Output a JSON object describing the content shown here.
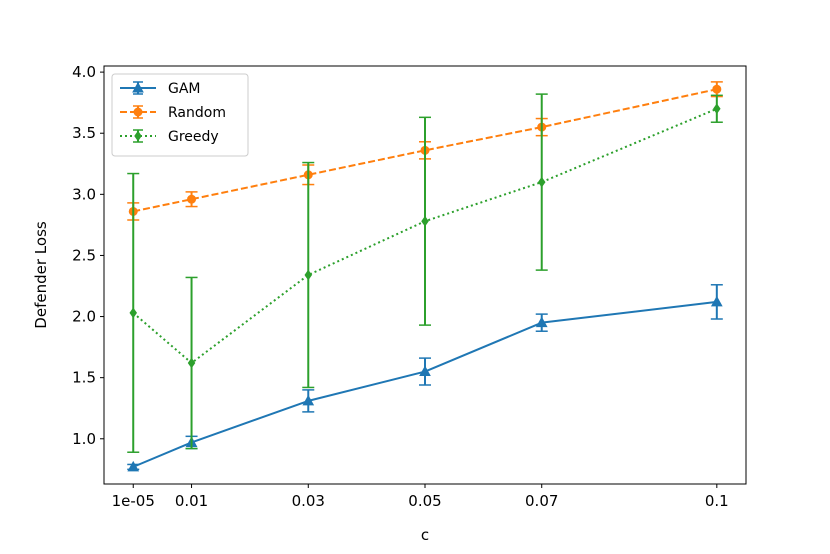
{
  "chart_data": {
    "type": "line",
    "title": "",
    "xlabel": "c",
    "ylabel": "Defender Loss",
    "x": [
      1e-05,
      0.01,
      0.03,
      0.05,
      0.07,
      0.1
    ],
    "x_tick_labels": [
      "1e-05",
      "0.01",
      "0.03",
      "0.05",
      "0.07",
      "0.1"
    ],
    "xlim": [
      -0.005,
      0.105
    ],
    "ylim": [
      0.63,
      4.05
    ],
    "y_ticks": [
      1.0,
      1.5,
      2.0,
      2.5,
      3.0,
      3.5,
      4.0
    ],
    "y_tick_labels": [
      "1.0",
      "1.5",
      "2.0",
      "2.5",
      "3.0",
      "3.5",
      "4.0"
    ],
    "grid": false,
    "legend_position": "top-left",
    "series": [
      {
        "name": "GAM",
        "color": "#1f77b4",
        "linestyle": "solid",
        "marker": "triangle",
        "values": [
          0.77,
          0.97,
          1.31,
          1.55,
          1.95,
          2.12
        ],
        "errors": [
          0.02,
          0.05,
          0.09,
          0.11,
          0.07,
          0.14
        ]
      },
      {
        "name": "Random",
        "color": "#ff7f0e",
        "linestyle": "dashed",
        "marker": "circle",
        "values": [
          2.86,
          2.96,
          3.16,
          3.36,
          3.55,
          3.86
        ],
        "errors": [
          0.07,
          0.06,
          0.08,
          0.07,
          0.07,
          0.06
        ]
      },
      {
        "name": "Greedy",
        "color": "#2ca02c",
        "linestyle": "dotted",
        "marker": "diamond",
        "values": [
          2.03,
          1.62,
          2.34,
          2.78,
          3.1,
          3.7
        ],
        "errors": [
          1.14,
          0.7,
          0.92,
          0.85,
          0.72,
          0.11
        ]
      }
    ]
  }
}
